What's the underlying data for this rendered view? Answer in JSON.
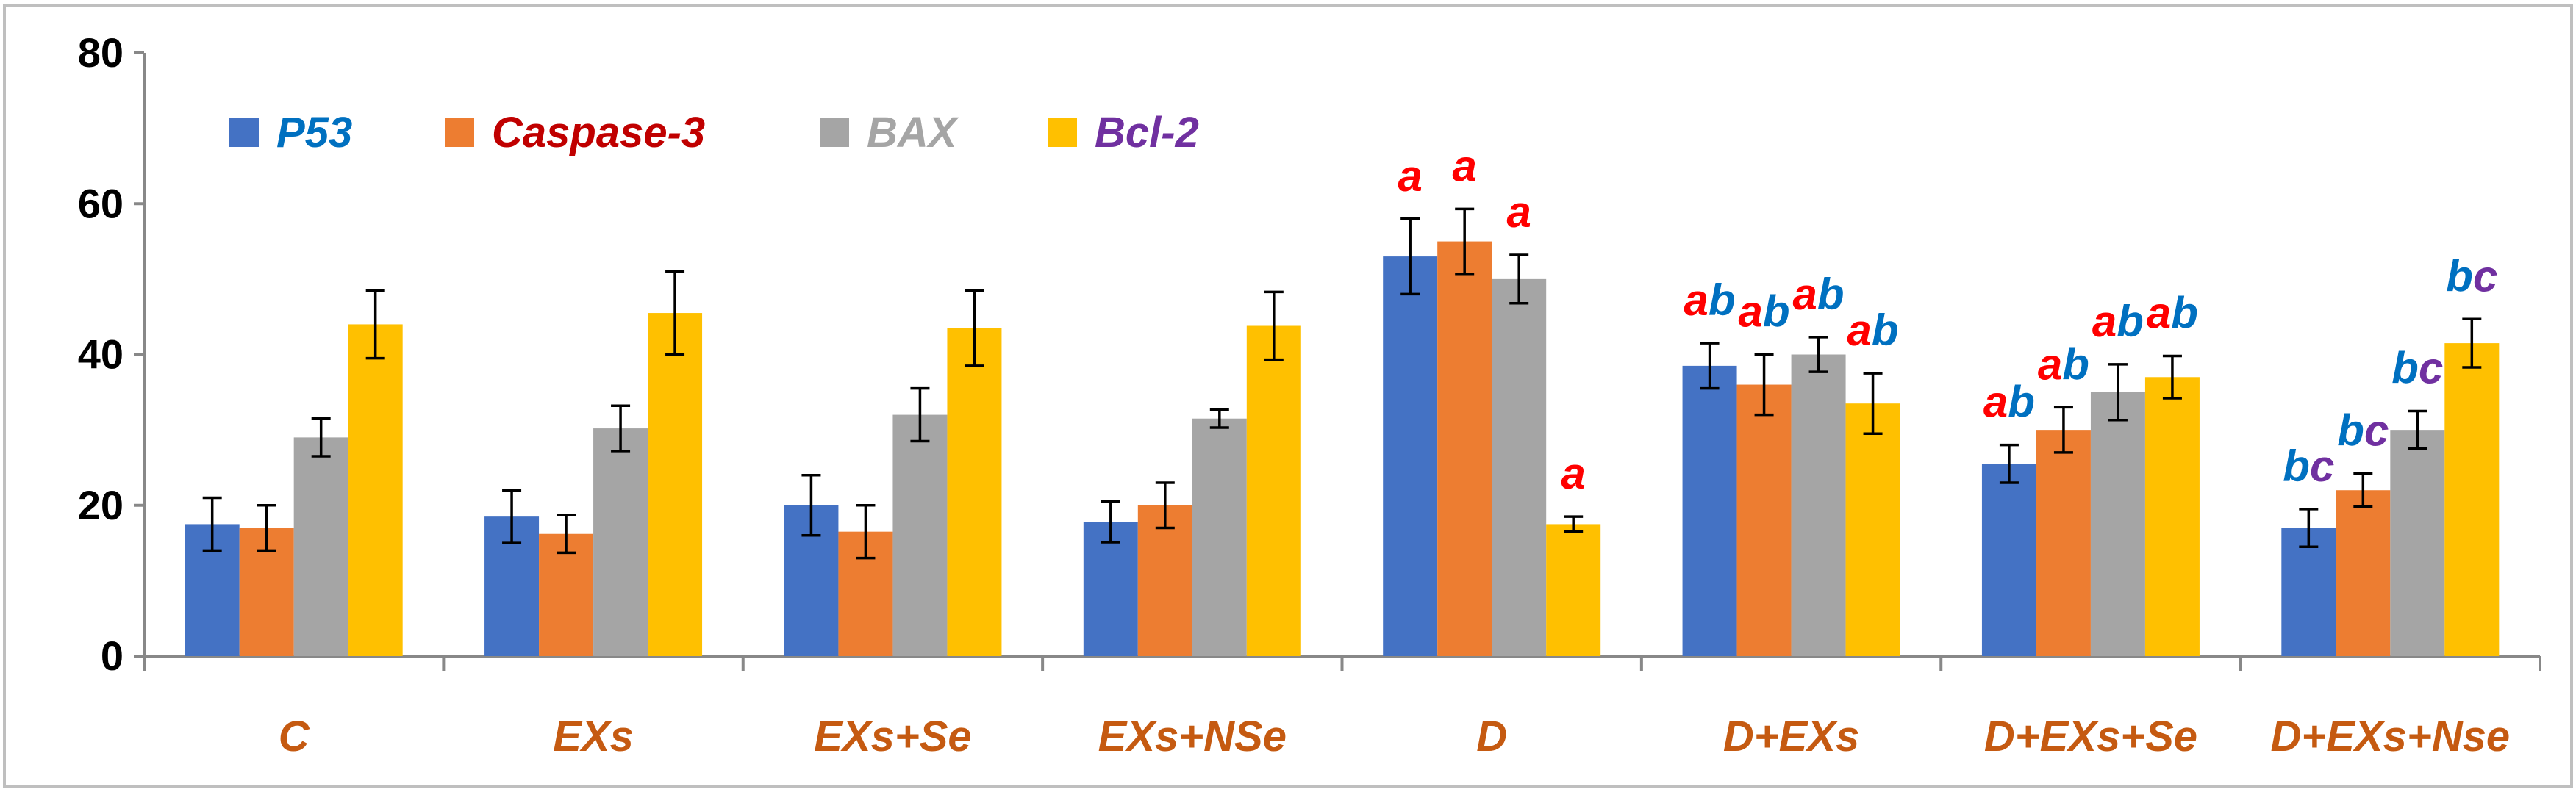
{
  "chart_data": {
    "type": "bar",
    "title": "",
    "xlabel": "",
    "ylabel": "",
    "ylim": [
      0,
      80
    ],
    "yticks": [
      0,
      20,
      40,
      60,
      80
    ],
    "grid": false,
    "legend_position": "top-left",
    "categories": [
      "C",
      "EXs",
      "EXs+Se",
      "EXs+NSe",
      "D",
      "D+EXs",
      "D+EXs+Se",
      "D+EXs+Nse"
    ],
    "series": [
      {
        "name": "P53",
        "color": "#4472C4",
        "label_color": "#0070C0",
        "values": [
          17.5,
          18.5,
          20,
          17.8,
          53,
          38.5,
          25.5,
          17
        ],
        "errors": [
          3.5,
          3.5,
          4,
          2.7,
          5,
          3,
          2.5,
          2.5
        ]
      },
      {
        "name": "Caspase-3",
        "color": "#ED7D31",
        "label_color": "#C00000",
        "values": [
          17,
          16.2,
          16.5,
          20,
          55,
          36,
          30,
          22
        ],
        "errors": [
          3,
          2.5,
          3.5,
          3,
          4.3,
          4,
          3,
          2.2
        ]
      },
      {
        "name": "BAX",
        "color": "#A5A5A5",
        "label_color": "#A5A5A5",
        "values": [
          29,
          30.2,
          32,
          31.5,
          50,
          40,
          35,
          30
        ],
        "errors": [
          2.5,
          3,
          3.5,
          1.2,
          3.2,
          2.3,
          3.7,
          2.5
        ]
      },
      {
        "name": "Bcl-2",
        "color": "#FFC000",
        "label_color": "#7030A0",
        "values": [
          44,
          45.5,
          43.5,
          43.8,
          17.5,
          33.5,
          37,
          41.5
        ],
        "errors": [
          4.5,
          5.5,
          5,
          4.5,
          1,
          4,
          2.8,
          3.2
        ]
      }
    ],
    "annotations": [
      {
        "category": "D",
        "series": "P53",
        "text": "a",
        "parts": [
          {
            "t": "a",
            "color": "#FF0000"
          }
        ]
      },
      {
        "category": "D",
        "series": "Caspase-3",
        "text": "a",
        "parts": [
          {
            "t": "a",
            "color": "#FF0000"
          }
        ]
      },
      {
        "category": "D",
        "series": "BAX",
        "text": "a",
        "parts": [
          {
            "t": "a",
            "color": "#FF0000"
          }
        ]
      },
      {
        "category": "D",
        "series": "Bcl-2",
        "text": "a",
        "parts": [
          {
            "t": "a",
            "color": "#FF0000"
          }
        ]
      },
      {
        "category": "D+EXs",
        "series": "P53",
        "text": "ab",
        "parts": [
          {
            "t": "a",
            "color": "#FF0000"
          },
          {
            "t": "b",
            "color": "#0070C0"
          }
        ]
      },
      {
        "category": "D+EXs",
        "series": "Caspase-3",
        "text": "ab",
        "parts": [
          {
            "t": "a",
            "color": "#FF0000"
          },
          {
            "t": "b",
            "color": "#0070C0"
          }
        ]
      },
      {
        "category": "D+EXs",
        "series": "BAX",
        "text": "ab",
        "parts": [
          {
            "t": "a",
            "color": "#FF0000"
          },
          {
            "t": "b",
            "color": "#0070C0"
          }
        ]
      },
      {
        "category": "D+EXs",
        "series": "Bcl-2",
        "text": "ab",
        "parts": [
          {
            "t": "a",
            "color": "#FF0000"
          },
          {
            "t": "b",
            "color": "#0070C0"
          }
        ]
      },
      {
        "category": "D+EXs+Se",
        "series": "P53",
        "text": "ab",
        "parts": [
          {
            "t": "a",
            "color": "#FF0000"
          },
          {
            "t": "b",
            "color": "#0070C0"
          }
        ]
      },
      {
        "category": "D+EXs+Se",
        "series": "Caspase-3",
        "text": "ab",
        "parts": [
          {
            "t": "a",
            "color": "#FF0000"
          },
          {
            "t": "b",
            "color": "#0070C0"
          }
        ]
      },
      {
        "category": "D+EXs+Se",
        "series": "BAX",
        "text": "ab",
        "parts": [
          {
            "t": "a",
            "color": "#FF0000"
          },
          {
            "t": "b",
            "color": "#0070C0"
          }
        ]
      },
      {
        "category": "D+EXs+Se",
        "series": "Bcl-2",
        "text": "ab",
        "parts": [
          {
            "t": "a",
            "color": "#FF0000"
          },
          {
            "t": "b",
            "color": "#0070C0"
          }
        ]
      },
      {
        "category": "D+EXs+Nse",
        "series": "P53",
        "text": "bc",
        "parts": [
          {
            "t": "b",
            "color": "#0070C0"
          },
          {
            "t": "c",
            "color": "#7030A0"
          }
        ]
      },
      {
        "category": "D+EXs+Nse",
        "series": "Caspase-3",
        "text": "bc",
        "parts": [
          {
            "t": "b",
            "color": "#0070C0"
          },
          {
            "t": "c",
            "color": "#7030A0"
          }
        ]
      },
      {
        "category": "D+EXs+Nse",
        "series": "BAX",
        "text": "bc",
        "parts": [
          {
            "t": "b",
            "color": "#0070C0"
          },
          {
            "t": "c",
            "color": "#7030A0"
          }
        ]
      },
      {
        "category": "D+EXs+Nse",
        "series": "Bcl-2",
        "text": "bc",
        "parts": [
          {
            "t": "b",
            "color": "#0070C0"
          },
          {
            "t": "c",
            "color": "#7030A0"
          }
        ]
      }
    ]
  }
}
